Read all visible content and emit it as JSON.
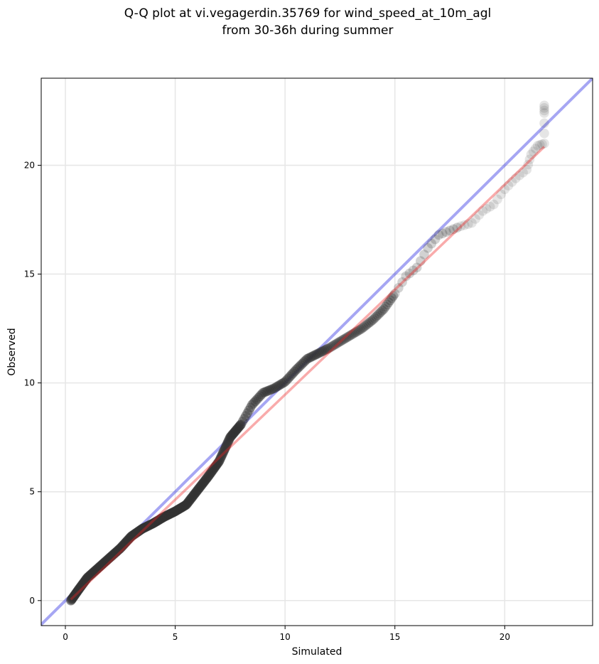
{
  "chart_data": {
    "type": "scatter",
    "title_lines": [
      "Q-Q plot at vi.vegagerdin.35769 for wind_speed_at_10m_agl",
      "from 30-36h during summer"
    ],
    "xlabel": "Simulated",
    "ylabel": "Observed",
    "xlim": [
      -1.1,
      24.0
    ],
    "ylim": [
      -1.15,
      24.0
    ],
    "xticks": [
      0,
      5,
      10,
      15,
      20
    ],
    "yticks": [
      0,
      5,
      10,
      15,
      20
    ],
    "xtick_labels": [
      "0",
      "5",
      "10",
      "15",
      "20"
    ],
    "ytick_labels": [
      "0",
      "5",
      "10",
      "15",
      "20"
    ],
    "grid": true,
    "reference_line": {
      "slope": 1,
      "intercept": 0,
      "color": "#0000dd"
    },
    "fit_line": {
      "x": [
        0.25,
        21.8
      ],
      "y": [
        0.05,
        20.85
      ],
      "color": "#ee2222"
    },
    "point_color": "#333333",
    "quantile_anchors": [
      [
        0.25,
        0.0
      ],
      [
        0.6,
        0.5
      ],
      [
        1.0,
        1.05
      ],
      [
        1.5,
        1.5
      ],
      [
        2.0,
        1.95
      ],
      [
        2.5,
        2.4
      ],
      [
        3.0,
        2.95
      ],
      [
        3.5,
        3.3
      ],
      [
        4.0,
        3.55
      ],
      [
        4.5,
        3.85
      ],
      [
        5.0,
        4.1
      ],
      [
        5.5,
        4.4
      ],
      [
        6.0,
        5.05
      ],
      [
        6.5,
        5.7
      ],
      [
        7.0,
        6.4
      ],
      [
        7.5,
        7.5
      ],
      [
        8.0,
        8.1
      ],
      [
        8.5,
        9.0
      ],
      [
        9.0,
        9.55
      ],
      [
        9.5,
        9.75
      ],
      [
        10.0,
        10.05
      ],
      [
        10.5,
        10.6
      ],
      [
        11.0,
        11.1
      ],
      [
        11.5,
        11.35
      ],
      [
        12.0,
        11.6
      ],
      [
        12.5,
        11.9
      ],
      [
        13.0,
        12.2
      ],
      [
        13.5,
        12.5
      ],
      [
        14.0,
        12.9
      ],
      [
        14.5,
        13.4
      ],
      [
        15.0,
        14.1
      ],
      [
        15.5,
        14.9
      ],
      [
        16.0,
        15.3
      ],
      [
        16.5,
        16.2
      ],
      [
        17.0,
        16.8
      ],
      [
        17.5,
        17.0
      ],
      [
        18.0,
        17.2
      ],
      [
        18.5,
        17.35
      ],
      [
        19.0,
        17.9
      ],
      [
        19.5,
        18.2
      ],
      [
        20.0,
        18.9
      ],
      [
        20.5,
        19.4
      ],
      [
        21.0,
        19.8
      ],
      [
        21.2,
        20.5
      ],
      [
        21.5,
        20.9
      ],
      [
        21.8,
        21.0
      ],
      [
        21.8,
        22.4
      ],
      [
        21.8,
        22.75
      ]
    ]
  }
}
